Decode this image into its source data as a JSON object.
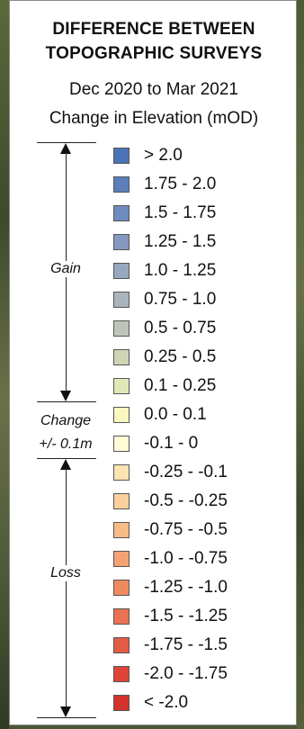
{
  "legend": {
    "title_line1": "DIFFERENCE BETWEEN",
    "title_line2": "TOPOGRAPHIC SURVEYS",
    "date_range": "Dec 2020 to Mar 2021",
    "measure": "Change in Elevation (mOD)",
    "groups": {
      "gain": "Gain",
      "change_line1": "Change",
      "change_line2": "+/- 0.1m",
      "loss": "Loss"
    },
    "items": [
      {
        "label": "> 2.0",
        "color": "#4a72b8"
      },
      {
        "label": "1.75 - 2.0",
        "color": "#5a7fbb"
      },
      {
        "label": "1.5 - 1.75",
        "color": "#6f8cbf"
      },
      {
        "label": "1.25 - 1.5",
        "color": "#8499c0"
      },
      {
        "label": "1.0 - 1.25",
        "color": "#97a7bf"
      },
      {
        "label": "0.75 - 1.0",
        "color": "#a9b5bd"
      },
      {
        "label": "0.5 - 0.75",
        "color": "#bcc5b8"
      },
      {
        "label": "0.25 - 0.5",
        "color": "#cdd5b4"
      },
      {
        "label": "0.1 - 0.25",
        "color": "#e1e8b8"
      },
      {
        "label": "0.0 - 0.1",
        "color": "#fbf8bf"
      },
      {
        "label": "-0.1 - 0",
        "color": "#fefbd6"
      },
      {
        "label": "-0.25 - -0.1",
        "color": "#fee3b2"
      },
      {
        "label": "-0.5 - -0.25",
        "color": "#fcd09c"
      },
      {
        "label": "-0.75 - -0.5",
        "color": "#f9bb86"
      },
      {
        "label": "-1.0 - -0.75",
        "color": "#f4a273"
      },
      {
        "label": "-1.25 - -1.0",
        "color": "#ef8a60"
      },
      {
        "label": "-1.5 - -1.25",
        "color": "#ea7252"
      },
      {
        "label": "-1.75 - -1.5",
        "color": "#e45b45"
      },
      {
        "label": "-2.0 - -1.75",
        "color": "#dd4538"
      },
      {
        "label": "< -2.0",
        "color": "#d4322c"
      }
    ]
  }
}
